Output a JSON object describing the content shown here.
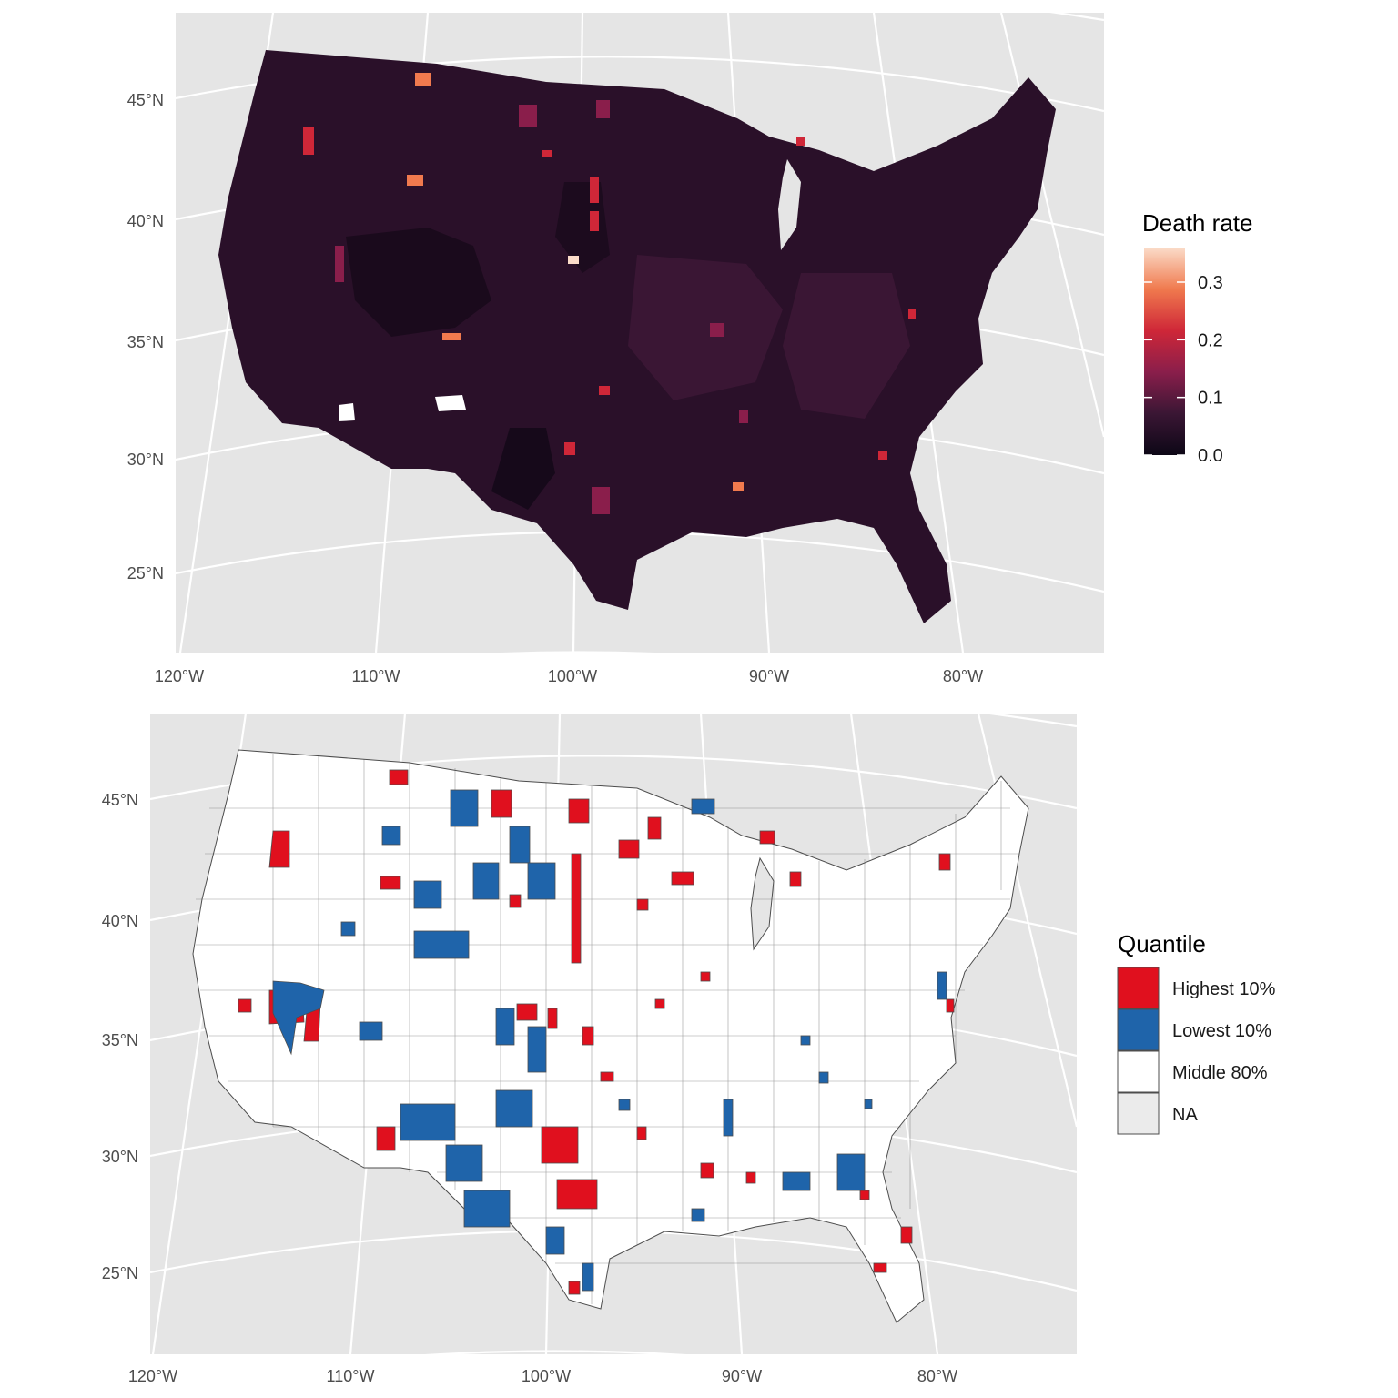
{
  "panels": {
    "top": {
      "legend_title": "Death rate",
      "legend_ticks": [
        "0.3",
        "0.2",
        "0.1",
        "0.0"
      ],
      "legend_values": [
        0.3,
        0.2,
        0.1,
        0.0
      ],
      "scale_max": 0.36,
      "palette": [
        "#0d0716",
        "#3a1634",
        "#8a1e4b",
        "#cf2738",
        "#f07a4e",
        "#fbdcc9"
      ],
      "lat_labels": [
        "45°N",
        "40°N",
        "35°N",
        "30°N",
        "25°N"
      ],
      "lon_labels": [
        "120°W",
        "110°W",
        "100°W",
        "90°W",
        "80°W"
      ]
    },
    "bottom": {
      "legend_title": "Quantile",
      "legend_items": [
        {
          "label": "Highest 10%",
          "color": "#e0101e"
        },
        {
          "label": "Lowest 10%",
          "color": "#1f64aa"
        },
        {
          "label": "Middle 80%",
          "color": "#ffffff"
        },
        {
          "label": "NA",
          "color": "#ebebeb"
        }
      ],
      "lat_labels": [
        "45°N",
        "40°N",
        "35°N",
        "30°N",
        "25°N"
      ],
      "lon_labels": [
        "120°W",
        "110°W",
        "100°W",
        "90°W",
        "80°W"
      ]
    }
  },
  "colors": {
    "panel_bg": "#e5e5e5",
    "graticule": "#ffffff",
    "base_fill_top": "#2a1029",
    "county_border_bottom": "#4d4d4d"
  }
}
